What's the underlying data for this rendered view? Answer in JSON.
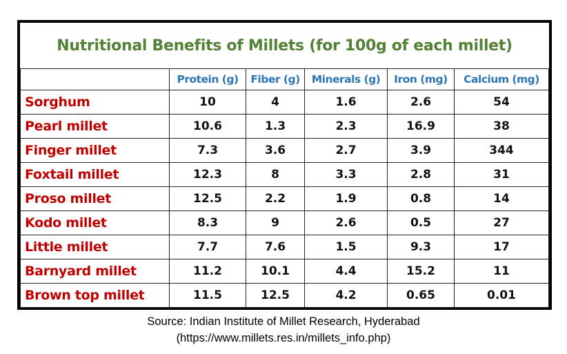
{
  "title": "Nutritional Benefits of Millets (for 100g of each millet)",
  "columns": [
    "Protein (g)",
    "Fiber (g)",
    "Minerals (g)",
    "Iron (mg)",
    "Calcium (mg)"
  ],
  "rows": [
    {
      "name": "Sorghum",
      "values": [
        "10",
        "4",
        "1.6",
        "2.6",
        "54"
      ]
    },
    {
      "name": "Pearl millet",
      "values": [
        "10.6",
        "1.3",
        "2.3",
        "16.9",
        "38"
      ]
    },
    {
      "name": "Finger millet",
      "values": [
        "7.3",
        "3.6",
        "2.7",
        "3.9",
        "344"
      ]
    },
    {
      "name": "Foxtail millet",
      "values": [
        "12.3",
        "8",
        "3.3",
        "2.8",
        "31"
      ]
    },
    {
      "name": "Proso millet",
      "values": [
        "12.5",
        "2.2",
        "1.9",
        "0.8",
        "14"
      ]
    },
    {
      "name": "Kodo millet",
      "values": [
        "8.3",
        "9",
        "2.6",
        "0.5",
        "27"
      ]
    },
    {
      "name": "Little millet",
      "values": [
        "7.7",
        "7.6",
        "1.5",
        "9.3",
        "17"
      ]
    },
    {
      "name": "Barnyard millet",
      "values": [
        "11.2",
        "10.1",
        "4.4",
        "15.2",
        "11"
      ]
    },
    {
      "name": "Brown top millet",
      "values": [
        "11.5",
        "12.5",
        "4.2",
        "0.65",
        "0.01"
      ]
    }
  ],
  "source_line1": "Source: Indian Institute of Millet Research, Hyderabad",
  "source_line2": "(https://www.millets.res.in/millets_info.php)",
  "colors": {
    "title": "#538135",
    "header": "#2e75b6",
    "row_name": "#c00000"
  }
}
